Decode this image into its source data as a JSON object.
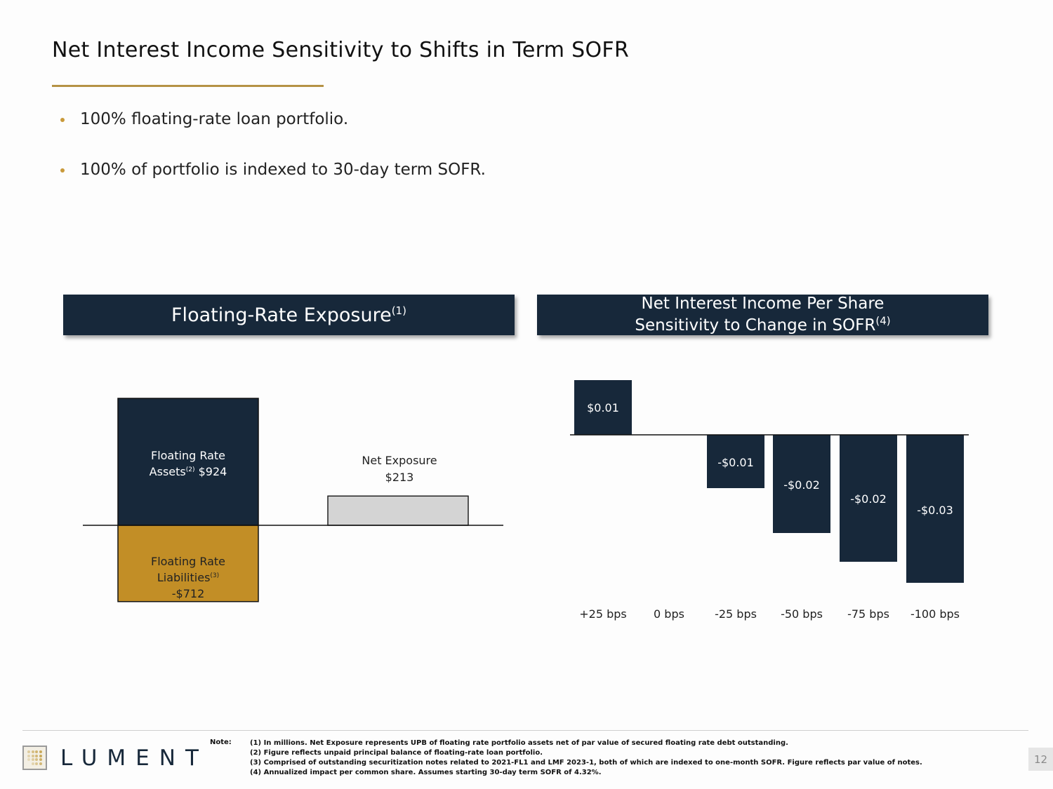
{
  "header": {
    "title": "Net Interest Income Sensitivity to Shifts in Term SOFR"
  },
  "bullets": [
    "100% floating-rate loan portfolio.",
    "100% of portfolio is indexed to 30-day term SOFR."
  ],
  "colors": {
    "navy": "#17283a",
    "gold": "#c28e26",
    "gold_rule": "#b59245",
    "gray_bar": "#d4d4d4"
  },
  "panels": {
    "left": {
      "title": "Floating-Rate Exposure",
      "footnote": "(1)"
    },
    "right": {
      "title_line1": "Net Interest Income Per Share",
      "title_line2": "Sensitivity to Change in SOFR",
      "footnote": "(4)"
    }
  },
  "chart_data": [
    {
      "type": "bar",
      "title": "Floating-Rate Exposure (1)",
      "units": "USD millions",
      "bars": [
        {
          "name": "Floating Rate Assets",
          "footnote": "(2)",
          "value": 924,
          "label_line1": "Floating Rate",
          "label_line2": "Assets",
          "label_value": "$924"
        },
        {
          "name": "Floating Rate Liabilities",
          "footnote": "(3)",
          "value": -712,
          "label_line1": "Floating Rate",
          "label_line2": "Liabilities",
          "label_value": "-$712"
        },
        {
          "name": "Net Exposure",
          "value": 213,
          "label_line1": "Net Exposure",
          "label_value": "$213"
        }
      ],
      "xlabel": "",
      "ylabel": "",
      "grid": false
    },
    {
      "type": "bar",
      "title": "Net Interest Income Per Share Sensitivity to Change in SOFR (4)",
      "categories": [
        "+25 bps",
        "0 bps",
        "-25 bps",
        "-50 bps",
        "-75 bps",
        "-100 bps"
      ],
      "values": [
        0.01,
        0.0,
        -0.01,
        -0.02,
        -0.02,
        -0.03
      ],
      "data_labels": [
        "$0.01",
        "",
        "-$0.01",
        "-$0.02",
        "-$0.02",
        "-$0.03"
      ],
      "ylim": [
        -0.03,
        0.01
      ],
      "xlabel": "",
      "ylabel": "",
      "grid": false
    }
  ],
  "footer": {
    "logo_text": "LUMENT",
    "note_label": "Note:",
    "notes": [
      "(1) In millions. Net Exposure represents UPB of floating rate portfolio assets net of par value of secured floating rate debt outstanding.",
      "(2) Figure reflects unpaid principal balance of floating-rate loan portfolio.",
      "(3) Comprised of outstanding securitization notes related to 2021-FL1 and LMF 2023-1, both of which are indexed to one-month SOFR. Figure reflects par value of notes.",
      "(4) Annualized impact per common share. Assumes starting 30-day term SOFR of 4.32%."
    ],
    "page_number": "12"
  }
}
